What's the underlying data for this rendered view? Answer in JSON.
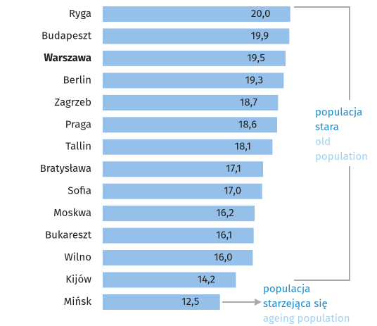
{
  "chart_data": {
    "type": "bar",
    "orientation": "horizontal",
    "categories": [
      "Ryga",
      "Budapeszt",
      "Warszawa",
      "Berlin",
      "Zagrzeb",
      "Praga",
      "Tallin",
      "Bratysława",
      "Sofia",
      "Moskwa",
      "Bukareszt",
      "Wilno",
      "Kijów",
      "Mińsk"
    ],
    "values": [
      20.0,
      19.9,
      19.5,
      19.3,
      18.7,
      18.6,
      18.1,
      17.1,
      17.0,
      16.2,
      16.1,
      16.0,
      14.2,
      12.5
    ],
    "value_labels": [
      "20,0",
      "19,9",
      "19,5",
      "19,3",
      "18,7",
      "18,6",
      "18,1",
      "17,1",
      "17,0",
      "16,2",
      "16,1",
      "16,0",
      "14,2",
      "12,5"
    ],
    "color": "#95c0e9",
    "highlight": "Warszawa",
    "xlim": [
      0,
      29
    ],
    "annotations": [
      {
        "lines": [
          "populacja",
          "stara"
        ],
        "translation": [
          "old",
          "population"
        ]
      },
      {
        "lines": [
          "populacja",
          "starzejąca się"
        ],
        "translation": [
          "ageing population"
        ]
      }
    ]
  }
}
